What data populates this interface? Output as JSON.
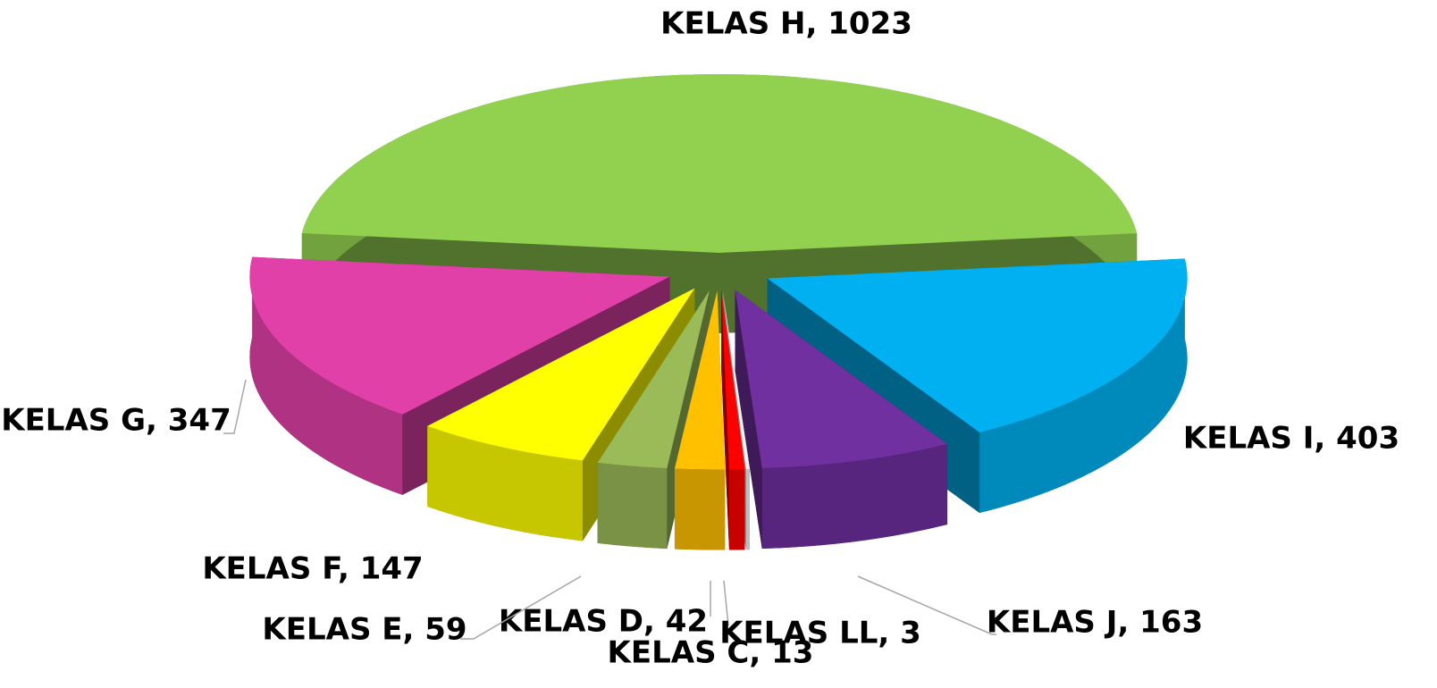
{
  "chart_data": {
    "type": "pie",
    "values": [
      1023,
      403,
      163,
      3,
      13,
      42,
      59,
      147,
      347
    ],
    "value_labels": [
      "KELAS H, 1023",
      "KELAS I, 403",
      "KELAS J, 163",
      "KELAS LL, 3",
      "KELAS C, 13",
      "KELAS D, 42",
      "KELAS E, 59",
      "KELAS F, 147",
      "KELAS G, 347"
    ],
    "colors": [
      "#92d050",
      "#00b0f0",
      "#7030a0",
      "#f2f2f2",
      "#ff0000",
      "#ffc000",
      "#9bbb59",
      "#ffff00",
      "#e040a8"
    ]
  }
}
